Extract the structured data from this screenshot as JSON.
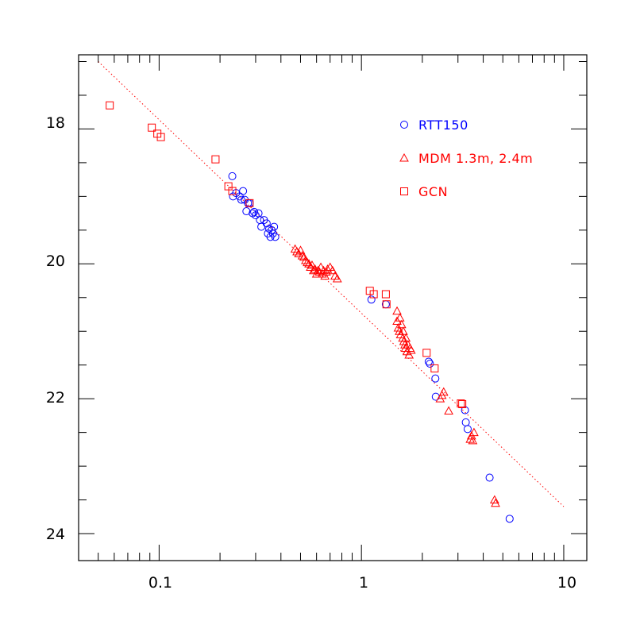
{
  "chart_data": {
    "type": "scatter",
    "x_scale": "log",
    "y_axis_inverted": true,
    "xlim": [
      0.04,
      13
    ],
    "ylim": [
      24.4,
      16.9
    ],
    "x_ticks": [
      {
        "value": 0.1,
        "label": "0.1"
      },
      {
        "value": 1,
        "label": "1"
      },
      {
        "value": 10,
        "label": "10"
      }
    ],
    "y_ticks": [
      {
        "value": 18,
        "label": "18"
      },
      {
        "value": 20,
        "label": "20"
      },
      {
        "value": 22,
        "label": "22"
      },
      {
        "value": 24,
        "label": "24"
      }
    ],
    "grid": false,
    "legend_position": "top-right",
    "fit_line": {
      "color": "#ff0000",
      "style": "dotted",
      "points": [
        [
          0.05,
          17.0
        ],
        [
          10,
          23.6
        ]
      ]
    },
    "series": [
      {
        "name": "RTT150",
        "marker": "circle",
        "color": "#0000ff",
        "points": [
          [
            0.23,
            18.7
          ],
          [
            0.232,
            19.0
          ],
          [
            0.24,
            18.95
          ],
          [
            0.25,
            19.0
          ],
          [
            0.255,
            19.05
          ],
          [
            0.26,
            18.92
          ],
          [
            0.265,
            19.05
          ],
          [
            0.27,
            19.22
          ],
          [
            0.275,
            19.1
          ],
          [
            0.28,
            19.1
          ],
          [
            0.29,
            19.25
          ],
          [
            0.295,
            19.23
          ],
          [
            0.3,
            19.28
          ],
          [
            0.31,
            19.25
          ],
          [
            0.315,
            19.35
          ],
          [
            0.32,
            19.45
          ],
          [
            0.33,
            19.35
          ],
          [
            0.34,
            19.4
          ],
          [
            0.345,
            19.55
          ],
          [
            0.35,
            19.48
          ],
          [
            0.355,
            19.6
          ],
          [
            0.36,
            19.5
          ],
          [
            0.365,
            19.55
          ],
          [
            0.37,
            19.45
          ],
          [
            0.375,
            19.6
          ],
          [
            1.12,
            20.53
          ],
          [
            1.32,
            20.6
          ],
          [
            2.15,
            21.45
          ],
          [
            2.18,
            21.48
          ],
          [
            2.32,
            21.7
          ],
          [
            2.33,
            21.97
          ],
          [
            3.25,
            22.17
          ],
          [
            3.28,
            22.35
          ],
          [
            3.35,
            22.45
          ],
          [
            4.3,
            23.17
          ],
          [
            5.4,
            23.78
          ]
        ]
      },
      {
        "name": "MDM 1.3m, 2.4m",
        "marker": "triangle",
        "color": "#ff0000",
        "points": [
          [
            0.47,
            19.78
          ],
          [
            0.48,
            19.82
          ],
          [
            0.49,
            19.85
          ],
          [
            0.5,
            19.8
          ],
          [
            0.51,
            19.88
          ],
          [
            0.52,
            19.9
          ],
          [
            0.53,
            19.95
          ],
          [
            0.54,
            19.98
          ],
          [
            0.55,
            20.0
          ],
          [
            0.56,
            20.05
          ],
          [
            0.57,
            20.02
          ],
          [
            0.58,
            20.1
          ],
          [
            0.59,
            20.08
          ],
          [
            0.6,
            20.15
          ],
          [
            0.61,
            20.1
          ],
          [
            0.62,
            20.12
          ],
          [
            0.63,
            20.05
          ],
          [
            0.64,
            20.15
          ],
          [
            0.65,
            20.1
          ],
          [
            0.66,
            20.18
          ],
          [
            0.67,
            20.12
          ],
          [
            0.68,
            20.08
          ],
          [
            0.7,
            20.05
          ],
          [
            0.72,
            20.1
          ],
          [
            0.74,
            20.18
          ],
          [
            0.76,
            20.22
          ],
          [
            1.5,
            20.7
          ],
          [
            1.5,
            20.85
          ],
          [
            1.52,
            20.95
          ],
          [
            1.54,
            21.0
          ],
          [
            1.55,
            20.8
          ],
          [
            1.56,
            21.05
          ],
          [
            1.58,
            20.9
          ],
          [
            1.6,
            21.1
          ],
          [
            1.61,
            21.0
          ],
          [
            1.62,
            21.15
          ],
          [
            1.64,
            21.2
          ],
          [
            1.65,
            21.25
          ],
          [
            1.66,
            21.1
          ],
          [
            1.68,
            21.3
          ],
          [
            1.7,
            21.2
          ],
          [
            1.72,
            21.35
          ],
          [
            1.74,
            21.25
          ],
          [
            1.76,
            21.28
          ],
          [
            2.45,
            22.0
          ],
          [
            2.5,
            21.95
          ],
          [
            2.55,
            21.9
          ],
          [
            2.7,
            22.18
          ],
          [
            3.45,
            22.6
          ],
          [
            3.5,
            22.55
          ],
          [
            3.55,
            22.62
          ],
          [
            3.6,
            22.5
          ],
          [
            4.55,
            23.5
          ],
          [
            4.6,
            23.55
          ]
        ]
      },
      {
        "name": "GCN",
        "marker": "square",
        "color": "#ff0000",
        "points": [
          [
            0.057,
            17.65
          ],
          [
            0.092,
            17.98
          ],
          [
            0.098,
            18.07
          ],
          [
            0.102,
            18.12
          ],
          [
            0.19,
            18.45
          ],
          [
            0.22,
            18.85
          ],
          [
            0.23,
            18.92
          ],
          [
            0.28,
            19.1
          ],
          [
            1.1,
            20.4
          ],
          [
            1.15,
            20.45
          ],
          [
            1.32,
            20.45
          ],
          [
            1.33,
            20.6
          ],
          [
            2.1,
            21.32
          ],
          [
            2.3,
            21.55
          ],
          [
            3.1,
            22.07
          ],
          [
            3.15,
            22.08
          ]
        ]
      }
    ]
  }
}
